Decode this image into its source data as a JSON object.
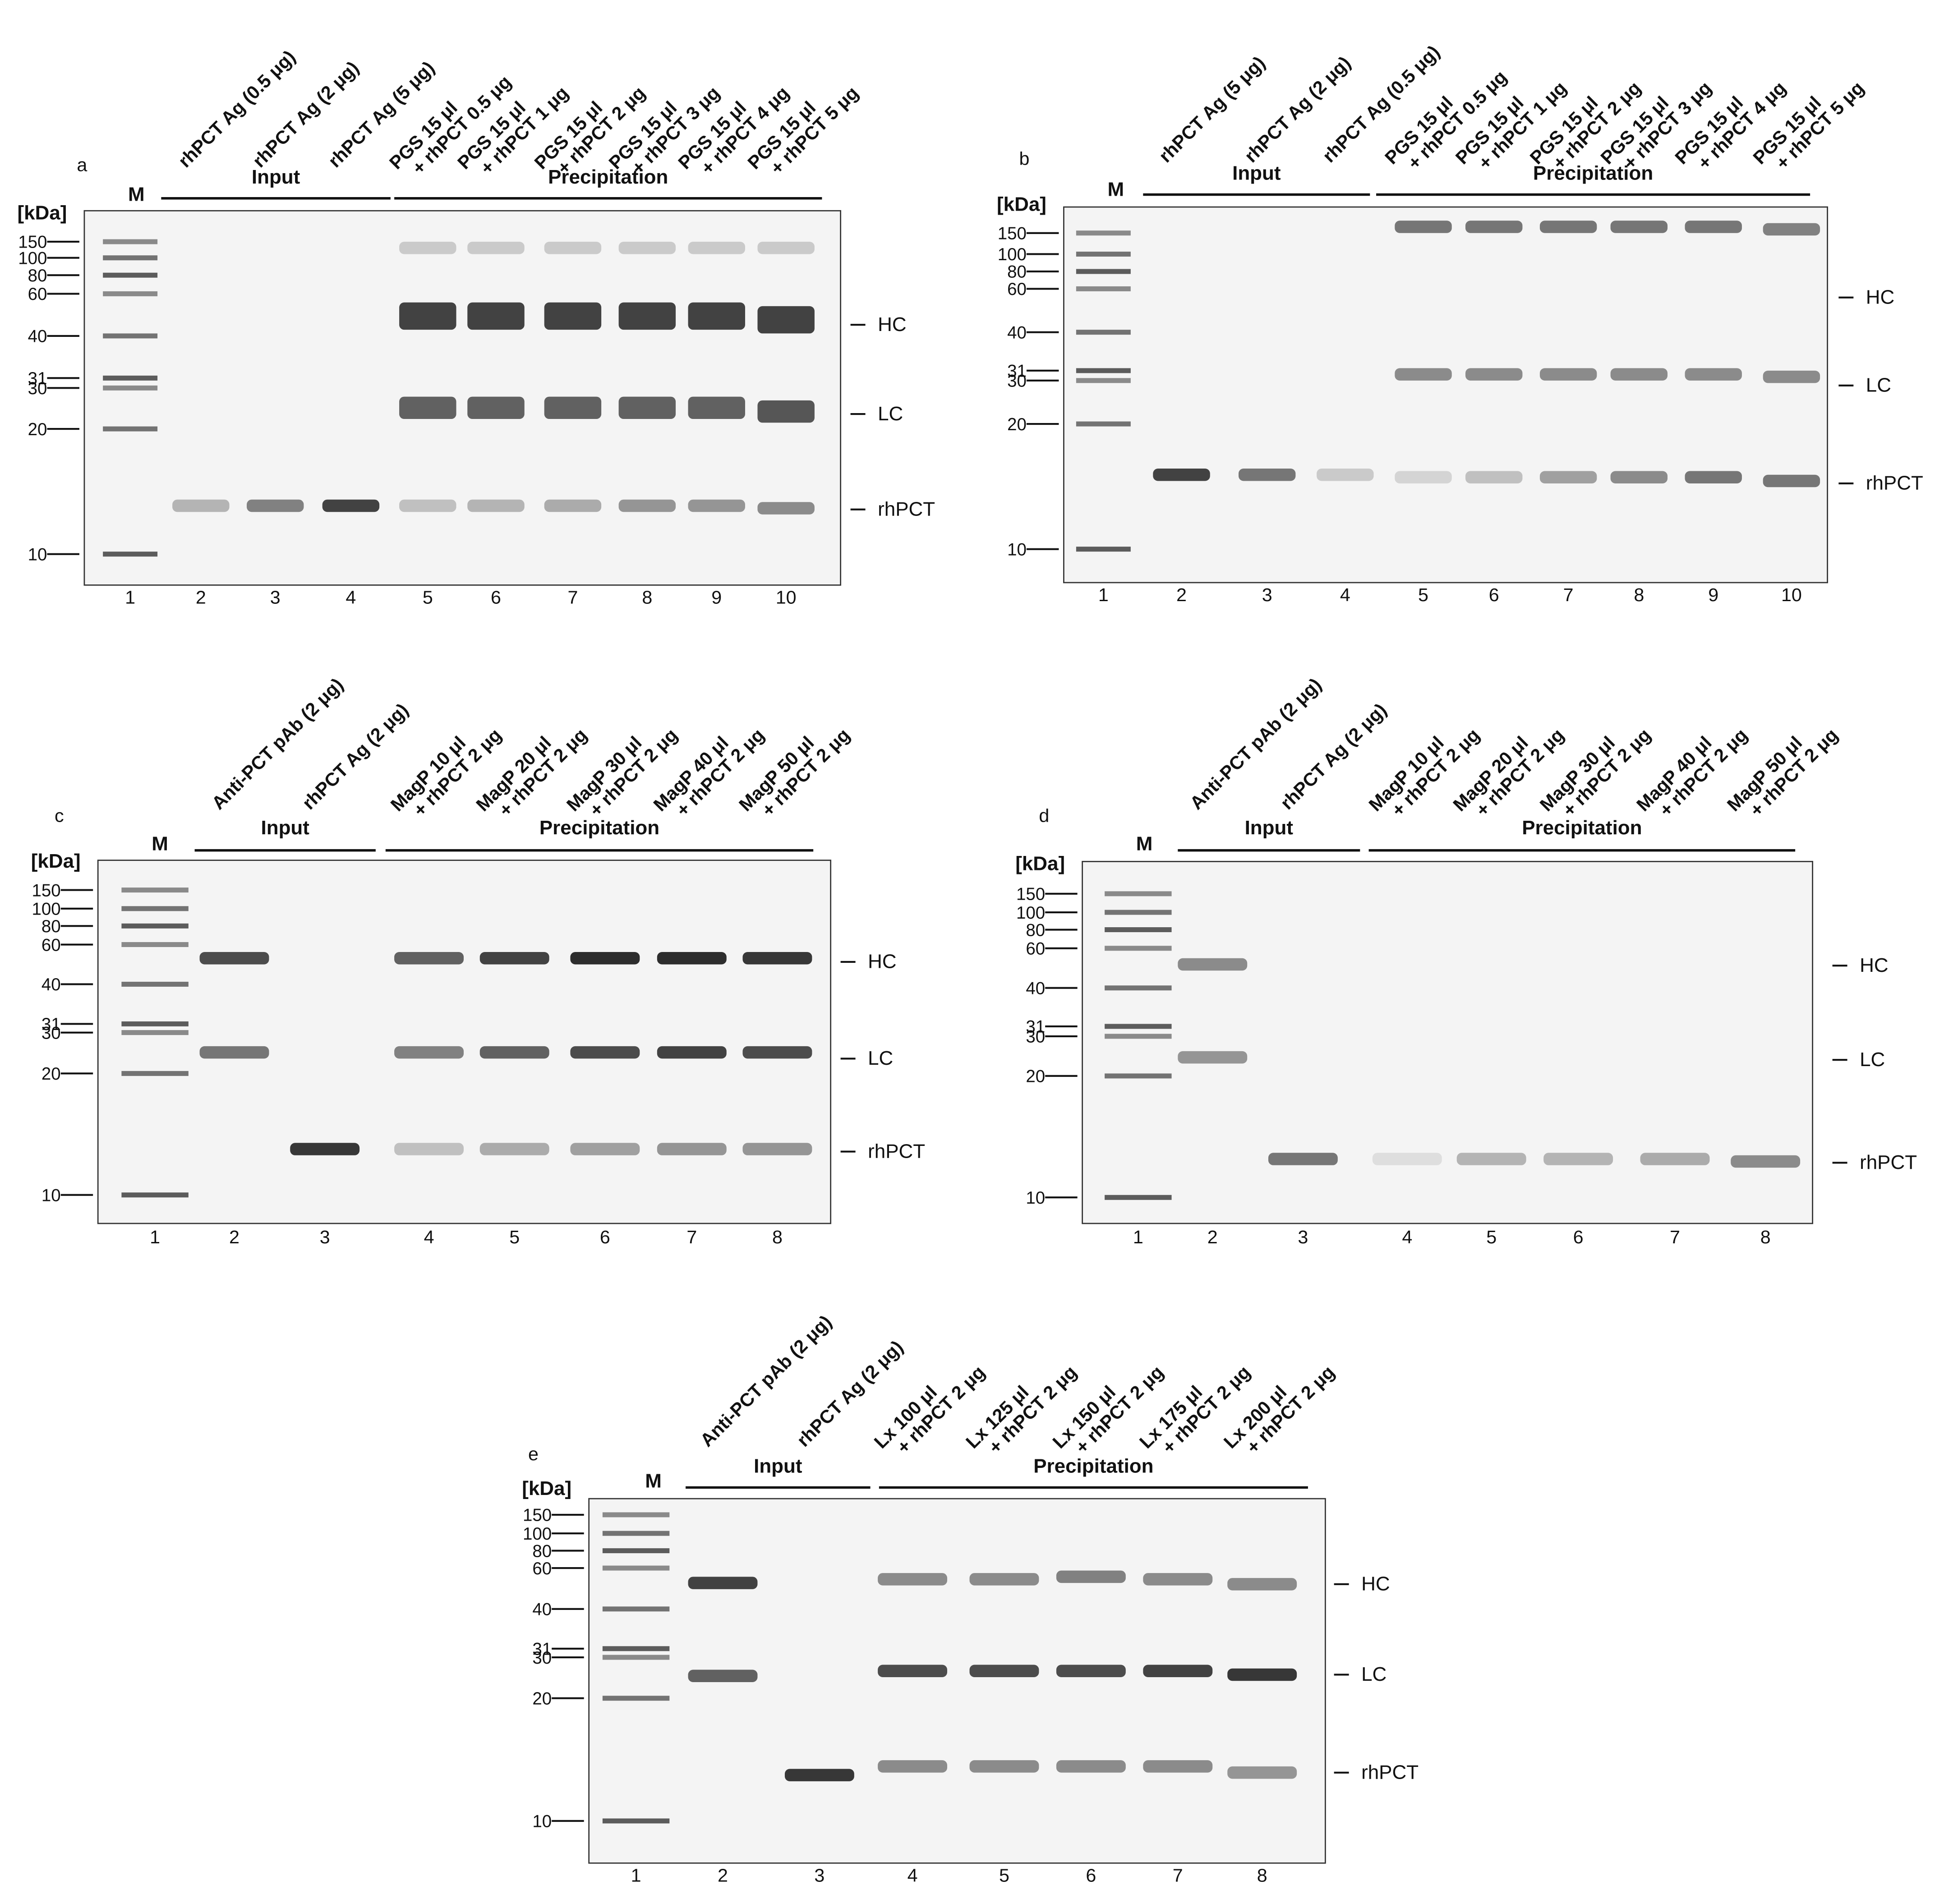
{
  "panels": [
    {
      "label": "a",
      "marker_lane": "M",
      "unit": "[kDa]",
      "markers": [
        150,
        100,
        80,
        60,
        40,
        31,
        30,
        20,
        10
      ],
      "groups": [
        "Input",
        "Precipitation"
      ],
      "bands": [
        "HC",
        "LC",
        "rhPCT"
      ],
      "lanes": [
        {
          "number": 1
        },
        {
          "number": 2,
          "header": [
            "rhPCT Ag (0.5 μg)"
          ]
        },
        {
          "number": 3,
          "header": [
            "rhPCT Ag (2 μg)"
          ]
        },
        {
          "number": 4,
          "header": [
            "rhPCT Ag (5 μg)"
          ]
        },
        {
          "number": 5,
          "header": [
            "PGS 15 μl",
            "+ rhPCT 0.5 μg"
          ]
        },
        {
          "number": 6,
          "header": [
            "PGS 15 μl",
            "+ rhPCT 1 μg"
          ]
        },
        {
          "number": 7,
          "header": [
            "PGS 15 μl",
            "+ rhPCT 2 μg"
          ]
        },
        {
          "number": 8,
          "header": [
            "PGS 15 μl",
            "+ rhPCT 3 μg"
          ]
        },
        {
          "number": 9,
          "header": [
            "PGS 15 μl",
            "+ rhPCT 4 μg"
          ]
        },
        {
          "number": 10,
          "header": [
            "PGS 15 μl",
            "+ rhPCT 5 μg"
          ]
        }
      ]
    },
    {
      "label": "b",
      "marker_lane": "M",
      "unit": "[kDa]",
      "markers": [
        150,
        100,
        80,
        60,
        40,
        31,
        30,
        20,
        10
      ],
      "groups": [
        "Input",
        "Precipitation"
      ],
      "bands": [
        "HC",
        "LC",
        "rhPCT"
      ],
      "lanes": [
        {
          "number": 1
        },
        {
          "number": 2,
          "header": [
            "rhPCT Ag (5 μg)"
          ]
        },
        {
          "number": 3,
          "header": [
            "rhPCT Ag (2 μg)"
          ]
        },
        {
          "number": 4,
          "header": [
            "rhPCT Ag (0.5 μg)"
          ]
        },
        {
          "number": 5,
          "header": [
            "PGS 15 μl",
            "+ rhPCT 0.5 μg"
          ]
        },
        {
          "number": 6,
          "header": [
            "PGS 15 μl",
            "+ rhPCT 1 μg"
          ]
        },
        {
          "number": 7,
          "header": [
            "PGS 15 μl",
            "+ rhPCT 2 μg"
          ]
        },
        {
          "number": 8,
          "header": [
            "PGS 15 μl",
            "+ rhPCT 3 μg"
          ]
        },
        {
          "number": 9,
          "header": [
            "PGS 15 μl",
            "+ rhPCT 4 μg"
          ]
        },
        {
          "number": 10,
          "header": [
            "PGS 15 μl",
            "+ rhPCT 5 μg"
          ]
        }
      ]
    },
    {
      "label": "c",
      "marker_lane": "M",
      "unit": "[kDa]",
      "markers": [
        150,
        100,
        80,
        60,
        40,
        31,
        30,
        20,
        10
      ],
      "groups": [
        "Input",
        "Precipitation"
      ],
      "bands": [
        "HC",
        "LC",
        "rhPCT"
      ],
      "lanes": [
        {
          "number": 1
        },
        {
          "number": 2,
          "header": [
            "Anti-PCT pAb (2 μg)"
          ]
        },
        {
          "number": 3,
          "header": [
            "rhPCT Ag (2 μg)"
          ]
        },
        {
          "number": 4,
          "header": [
            "MagP 10 μl",
            "+ rhPCT 2 μg"
          ]
        },
        {
          "number": 5,
          "header": [
            "MagP 20 μl",
            "+ rhPCT 2 μg"
          ]
        },
        {
          "number": 6,
          "header": [
            "MagP 30 μl",
            "+ rhPCT 2 μg"
          ]
        },
        {
          "number": 7,
          "header": [
            "MagP 40 μl",
            "+ rhPCT 2 μg"
          ]
        },
        {
          "number": 8,
          "header": [
            "MagP 50 μl",
            "+ rhPCT 2 μg"
          ]
        }
      ]
    },
    {
      "label": "d",
      "marker_lane": "M",
      "unit": "[kDa]",
      "markers": [
        150,
        100,
        80,
        60,
        40,
        31,
        30,
        20,
        10
      ],
      "groups": [
        "Input",
        "Precipitation"
      ],
      "bands": [
        "HC",
        "LC",
        "rhPCT"
      ],
      "lanes": [
        {
          "number": 1
        },
        {
          "number": 2,
          "header": [
            "Anti-PCT pAb (2 μg)"
          ]
        },
        {
          "number": 3,
          "header": [
            "rhPCT Ag (2 μg)"
          ]
        },
        {
          "number": 4,
          "header": [
            "MagP 10 μl",
            "+ rhPCT 2 μg"
          ]
        },
        {
          "number": 5,
          "header": [
            "MagP 20 μl",
            "+ rhPCT 2 μg"
          ]
        },
        {
          "number": 6,
          "header": [
            "MagP 30 μl",
            "+ rhPCT 2 μg"
          ]
        },
        {
          "number": 7,
          "header": [
            "MagP 40 μl",
            "+ rhPCT 2 μg"
          ]
        },
        {
          "number": 8,
          "header": [
            "MagP 50 μl",
            "+ rhPCT 2 μg"
          ]
        }
      ]
    },
    {
      "label": "e",
      "marker_lane": "M",
      "unit": "[kDa]",
      "markers": [
        150,
        100,
        80,
        60,
        40,
        31,
        30,
        20,
        10
      ],
      "groups": [
        "Input",
        "Precipitation"
      ],
      "bands": [
        "HC",
        "LC",
        "rhPCT"
      ],
      "lanes": [
        {
          "number": 1
        },
        {
          "number": 2,
          "header": [
            "Anti-PCT pAb (2 μg)"
          ]
        },
        {
          "number": 3,
          "header": [
            "rhPCT Ag (2 μg)"
          ]
        },
        {
          "number": 4,
          "header": [
            "Lx 100 μl",
            "+ rhPCT 2 μg"
          ]
        },
        {
          "number": 5,
          "header": [
            "Lx 125 μl",
            "+ rhPCT 2 μg"
          ]
        },
        {
          "number": 6,
          "header": [
            "Lx 150 μl",
            "+ rhPCT 2 μg"
          ]
        },
        {
          "number": 7,
          "header": [
            "Lx 175 μl",
            "+ rhPCT 2 μg"
          ]
        },
        {
          "number": 8,
          "header": [
            "Lx 200 μl",
            "+ rhPCT 2 μg"
          ]
        }
      ]
    }
  ]
}
